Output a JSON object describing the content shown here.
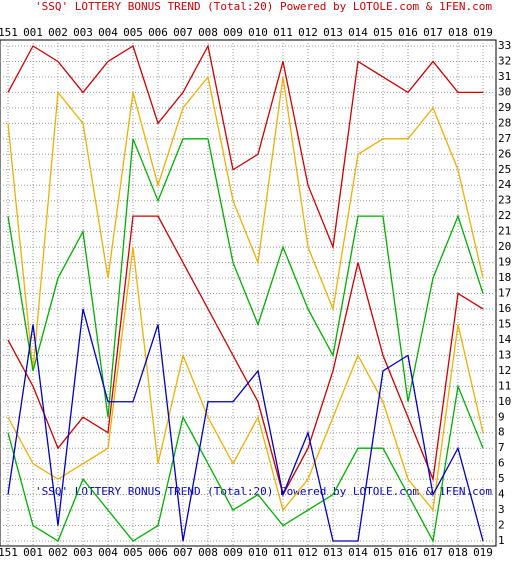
{
  "chart_data": {
    "type": "line",
    "title": "'SSQ' LOTTERY BONUS TREND (Total:20)  Powered by LOTOLE.com & 1FEN.com",
    "footer": "'SSQ' LOTTERY BONUS TREND (Total:20)  Powered by LOTOLE.com & 1FEN.com",
    "categories": [
      "151",
      "001",
      "002",
      "003",
      "004",
      "005",
      "006",
      "007",
      "008",
      "009",
      "010",
      "011",
      "012",
      "013",
      "014",
      "015",
      "016",
      "017",
      "018",
      "019"
    ],
    "series": [
      {
        "color": "#d00000",
        "values": [
          30,
          33,
          32,
          30,
          32,
          33,
          28,
          30,
          33,
          25,
          26,
          32,
          24,
          20,
          32,
          31,
          30,
          32,
          30,
          30
        ]
      },
      {
        "color": "#f0b000",
        "values": [
          28,
          12,
          30,
          28,
          18,
          30,
          24,
          29,
          31,
          23,
          19,
          31,
          20,
          16,
          26,
          27,
          27,
          29,
          25,
          18
        ]
      },
      {
        "color": "#00b000",
        "values": [
          22,
          12,
          18,
          21,
          9,
          27,
          23,
          27,
          27,
          19,
          15,
          20,
          16,
          13,
          22,
          22,
          10,
          18,
          22,
          17
        ]
      },
      {
        "color": "#d00000",
        "values": [
          14,
          11,
          7,
          9,
          8,
          22,
          22,
          19,
          16,
          13,
          10,
          4,
          7,
          12,
          19,
          13,
          9,
          5,
          17,
          16
        ]
      },
      {
        "color": "#f0b000",
        "values": [
          9,
          6,
          5,
          6,
          7,
          20,
          6,
          13,
          9,
          6,
          9,
          3,
          5,
          9,
          13,
          10,
          5,
          3,
          15,
          8
        ]
      },
      {
        "color": "#00b000",
        "values": [
          8,
          2,
          1,
          5,
          3,
          1,
          2,
          9,
          6,
          3,
          4,
          2,
          3,
          4,
          7,
          7,
          4,
          1,
          11,
          7
        ]
      },
      {
        "color": "#0000c0",
        "values": [
          4,
          15,
          2,
          16,
          10,
          10,
          15,
          1,
          10,
          10,
          12,
          4,
          8,
          1,
          1,
          12,
          13,
          4,
          7,
          1
        ]
      }
    ],
    "ylim": [
      1,
      33
    ],
    "yticks": [
      1,
      2,
      3,
      4,
      5,
      6,
      7,
      8,
      9,
      10,
      11,
      12,
      13,
      14,
      15,
      16,
      17,
      18,
      19,
      20,
      21,
      22,
      23,
      24,
      25,
      26,
      27,
      28,
      29,
      30,
      31,
      32,
      33
    ],
    "grid": true
  }
}
